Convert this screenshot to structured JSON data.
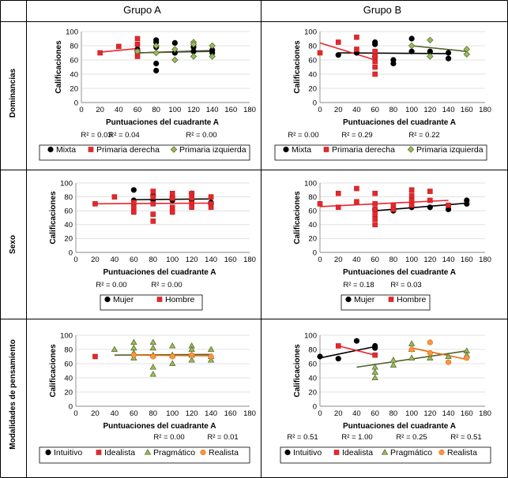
{
  "columns": [
    "Grupo A",
    "Grupo B"
  ],
  "rows": [
    "Dominancias",
    "Sexo",
    "Modalidades de pensamiento"
  ],
  "colors": {
    "black": "#000000",
    "red": "#e8262b",
    "green": "#9bbb59",
    "green_dark": "#4f6228",
    "orange": "#e46c0a",
    "orange_fill": "#f79646"
  },
  "chart_data": [
    {
      "type": "scatter",
      "group": "Grupo A",
      "row": "Dominancias",
      "xlabel": "Puntuaciones del cuadrante A",
      "ylabel": "Calificaciones",
      "xlim": [
        0,
        180
      ],
      "ylim": [
        0,
        100
      ],
      "xticks": [
        0,
        20,
        40,
        60,
        80,
        100,
        120,
        140,
        160,
        180
      ],
      "yticks": [
        0,
        20,
        40,
        60,
        80,
        100
      ],
      "r2": [
        "R² = 0.03",
        "R² = 0.04",
        "R² = 0.00"
      ],
      "series": [
        {
          "name": "Mixta",
          "marker": "circle",
          "color": "#000000",
          "points": [
            [
              60,
              75
            ],
            [
              80,
              88
            ],
            [
              80,
              85
            ],
            [
              80,
              78
            ],
            [
              80,
              55
            ],
            [
              80,
              45
            ],
            [
              100,
              84
            ],
            [
              100,
              70
            ],
            [
              120,
              78
            ],
            [
              120,
              72
            ],
            [
              140,
              70
            ],
            [
              140,
              74
            ]
          ],
          "trend": [
            [
              60,
              70
            ],
            [
              140,
              73
            ]
          ]
        },
        {
          "name": "Primaria derecha",
          "marker": "square",
          "color": "#e8262b",
          "points": [
            [
              20,
              70
            ],
            [
              40,
              79
            ],
            [
              60,
              90
            ],
            [
              60,
              82
            ],
            [
              60,
              72
            ],
            [
              60,
              65
            ]
          ],
          "trend": [
            [
              20,
              71
            ],
            [
              60,
              76
            ]
          ]
        },
        {
          "name": "Primaria izquierda",
          "marker": "diamond",
          "color": "#9bbb59",
          "points": [
            [
              60,
              72
            ],
            [
              80,
              80
            ],
            [
              80,
              70
            ],
            [
              100,
              75
            ],
            [
              100,
              60
            ],
            [
              120,
              85
            ],
            [
              120,
              82
            ],
            [
              120,
              65
            ],
            [
              140,
              80
            ],
            [
              140,
              65
            ]
          ],
          "trend": [
            [
              60,
              70
            ],
            [
              140,
              72
            ]
          ]
        }
      ]
    },
    {
      "type": "scatter",
      "group": "Grupo B",
      "row": "Dominancias",
      "xlabel": "Puntuaciones del cuadrante A",
      "ylabel": "Calificaciones",
      "xlim": [
        0,
        180
      ],
      "ylim": [
        0,
        100
      ],
      "xticks": [
        0,
        20,
        40,
        60,
        80,
        100,
        120,
        140,
        160,
        180
      ],
      "yticks": [
        0,
        20,
        40,
        60,
        80,
        100
      ],
      "r2": [
        "R² = 0.00",
        "R² = 0.29",
        "R² = 0.22"
      ],
      "series": [
        {
          "name": "Mixta",
          "marker": "circle",
          "color": "#000000",
          "points": [
            [
              20,
              67
            ],
            [
              40,
              70
            ],
            [
              60,
              85
            ],
            [
              60,
              82
            ],
            [
              60,
              65
            ],
            [
              80,
              60
            ],
            [
              80,
              55
            ],
            [
              100,
              90
            ],
            [
              100,
              72
            ],
            [
              120,
              72
            ],
            [
              140,
              70
            ],
            [
              140,
              62
            ]
          ],
          "trend": [
            [
              20,
              70
            ],
            [
              140,
              69
            ]
          ]
        },
        {
          "name": "Primaria derecha",
          "marker": "square",
          "color": "#e8262b",
          "points": [
            [
              0,
              70
            ],
            [
              20,
              85
            ],
            [
              40,
              92
            ],
            [
              40,
              75
            ],
            [
              60,
              72
            ],
            [
              60,
              65
            ],
            [
              60,
              58
            ],
            [
              60,
              50
            ],
            [
              60,
              40
            ]
          ],
          "trend": [
            [
              0,
              84
            ],
            [
              60,
              60
            ]
          ]
        },
        {
          "name": "Primaria izquierda",
          "marker": "diamond",
          "color": "#9bbb59",
          "points": [
            [
              100,
              80
            ],
            [
              120,
              88
            ],
            [
              120,
              65
            ],
            [
              160,
              75
            ],
            [
              160,
              68
            ]
          ],
          "trend": [
            [
              100,
              80
            ],
            [
              160,
              72
            ]
          ]
        }
      ]
    },
    {
      "type": "scatter",
      "group": "Grupo A",
      "row": "Sexo",
      "xlabel": "Puntuaciones del cuadrante A",
      "ylabel": "Calificaciones",
      "xlim": [
        0,
        180
      ],
      "ylim": [
        0,
        100
      ],
      "xticks": [
        0,
        20,
        40,
        60,
        80,
        100,
        120,
        140,
        160,
        180
      ],
      "yticks": [
        0,
        20,
        40,
        60,
        80,
        100
      ],
      "r2": [
        "R² = 0.00",
        "R² = 0.00"
      ],
      "series": [
        {
          "name": "Mujer",
          "marker": "circle",
          "color": "#000000",
          "points": [
            [
              60,
              90
            ],
            [
              60,
              75
            ],
            [
              80,
              82
            ],
            [
              80,
              76
            ],
            [
              100,
              80
            ],
            [
              100,
              75
            ],
            [
              120,
              85
            ],
            [
              120,
              75
            ],
            [
              140,
              72
            ],
            [
              140,
              70
            ]
          ],
          "trend": [
            [
              60,
              76
            ],
            [
              140,
              77
            ]
          ]
        },
        {
          "name": "Hombre",
          "marker": "square",
          "color": "#e8262b",
          "points": [
            [
              20,
              70
            ],
            [
              40,
              80
            ],
            [
              60,
              72
            ],
            [
              60,
              65
            ],
            [
              60,
              58
            ],
            [
              80,
              88
            ],
            [
              80,
              80
            ],
            [
              80,
              70
            ],
            [
              80,
              55
            ],
            [
              80,
              45
            ],
            [
              100,
              85
            ],
            [
              100,
              78
            ],
            [
              100,
              65
            ],
            [
              100,
              58
            ],
            [
              120,
              85
            ],
            [
              120,
              78
            ],
            [
              120,
              70
            ],
            [
              120,
              65
            ],
            [
              140,
              80
            ],
            [
              140,
              70
            ],
            [
              140,
              65
            ]
          ],
          "trend": [
            [
              20,
              70
            ],
            [
              140,
              71
            ]
          ]
        }
      ]
    },
    {
      "type": "scatter",
      "group": "Grupo B",
      "row": "Sexo",
      "xlabel": "Puntuaciones del cuadrante A",
      "ylabel": "Calificaciones",
      "xlim": [
        0,
        180
      ],
      "ylim": [
        0,
        100
      ],
      "xticks": [
        0,
        20,
        40,
        60,
        80,
        100,
        120,
        140,
        160,
        180
      ],
      "yticks": [
        0,
        20,
        40,
        60,
        80,
        100
      ],
      "r2": [
        "R² = 0.18",
        "R² = 0.03"
      ],
      "series": [
        {
          "name": "Mujer",
          "marker": "circle",
          "color": "#000000",
          "points": [
            [
              60,
              62
            ],
            [
              80,
              60
            ],
            [
              100,
              65
            ],
            [
              120,
              65
            ],
            [
              140,
              62
            ],
            [
              160,
              75
            ],
            [
              160,
              70
            ]
          ],
          "trend": [
            [
              60,
              60
            ],
            [
              160,
              71
            ]
          ]
        },
        {
          "name": "Hombre",
          "marker": "square",
          "color": "#e8262b",
          "points": [
            [
              0,
              70
            ],
            [
              20,
              85
            ],
            [
              20,
              65
            ],
            [
              40,
              92
            ],
            [
              40,
              73
            ],
            [
              60,
              85
            ],
            [
              60,
              70
            ],
            [
              60,
              62
            ],
            [
              60,
              55
            ],
            [
              60,
              48
            ],
            [
              60,
              40
            ],
            [
              80,
              68
            ],
            [
              80,
              62
            ],
            [
              100,
              90
            ],
            [
              100,
              82
            ],
            [
              100,
              75
            ],
            [
              100,
              68
            ],
            [
              120,
              88
            ],
            [
              120,
              75
            ],
            [
              140,
              68
            ]
          ],
          "trend": [
            [
              0,
              66
            ],
            [
              140,
              75
            ]
          ]
        }
      ]
    },
    {
      "type": "scatter",
      "group": "Grupo A",
      "row": "Modalidades de pensamiento",
      "xlabel": "Puntuaciones del cuadrante A",
      "ylabel": "Calificaciones",
      "xlim": [
        0,
        180
      ],
      "ylim": [
        0,
        100
      ],
      "xticks": [
        0,
        20,
        40,
        60,
        80,
        100,
        120,
        140,
        160,
        180
      ],
      "yticks": [
        0,
        20,
        40,
        60,
        80,
        100
      ],
      "r2": [
        "R² = 0.00",
        "R² = 0.01"
      ],
      "series": [
        {
          "name": "Intuitivo",
          "marker": "circle",
          "color": "#000000",
          "points": [],
          "trend": null
        },
        {
          "name": "Idealista",
          "marker": "square",
          "color": "#e8262b",
          "points": [
            [
              20,
              70
            ]
          ],
          "trend": null
        },
        {
          "name": "Pragmático",
          "marker": "triangle",
          "color": "#9bbb59",
          "points": [
            [
              40,
              80
            ],
            [
              60,
              90
            ],
            [
              60,
              82
            ],
            [
              60,
              75
            ],
            [
              60,
              68
            ],
            [
              80,
              90
            ],
            [
              80,
              82
            ],
            [
              80,
              72
            ],
            [
              80,
              55
            ],
            [
              80,
              45
            ],
            [
              100,
              85
            ],
            [
              100,
              72
            ],
            [
              100,
              60
            ],
            [
              120,
              85
            ],
            [
              120,
              80
            ],
            [
              120,
              72
            ],
            [
              120,
              65
            ],
            [
              140,
              80
            ],
            [
              140,
              70
            ],
            [
              140,
              65
            ]
          ],
          "trend": [
            [
              40,
              72
            ],
            [
              140,
              73
            ]
          ]
        },
        {
          "name": "Realista",
          "marker": "circle",
          "color": "#f79646",
          "points": [
            [
              60,
              72
            ],
            [
              80,
              70
            ],
            [
              100,
              70
            ],
            [
              120,
              72
            ],
            [
              140,
              70
            ]
          ],
          "trend": [
            [
              60,
              72
            ],
            [
              140,
              71
            ]
          ]
        }
      ]
    },
    {
      "type": "scatter",
      "group": "Grupo B",
      "row": "Modalidades de pensamiento",
      "xlabel": "Puntuaciones del cuadrante A",
      "ylabel": "Calificaciones",
      "xlim": [
        0,
        180
      ],
      "ylim": [
        0,
        100
      ],
      "xticks": [
        0,
        20,
        40,
        60,
        80,
        100,
        120,
        140,
        160,
        180
      ],
      "yticks": [
        0,
        20,
        40,
        60,
        80,
        100
      ],
      "r2": [
        "R² = 0.51",
        "R² = 1.00",
        "R² = 0.25",
        "R² = 0.51"
      ],
      "series": [
        {
          "name": "Intuitivo",
          "marker": "circle",
          "color": "#000000",
          "points": [
            [
              0,
              70
            ],
            [
              20,
              67
            ],
            [
              40,
              92
            ],
            [
              60,
              85
            ],
            [
              60,
              82
            ]
          ],
          "trend": [
            [
              0,
              68
            ],
            [
              60,
              84
            ]
          ]
        },
        {
          "name": "Idealista",
          "marker": "square",
          "color": "#e8262b",
          "points": [
            [
              20,
              85
            ],
            [
              60,
              72
            ]
          ],
          "trend": [
            [
              20,
              85
            ],
            [
              60,
              72
            ]
          ]
        },
        {
          "name": "Pragmático",
          "marker": "triangle",
          "color": "#9bbb59",
          "points": [
            [
              60,
              55
            ],
            [
              60,
              48
            ],
            [
              60,
              40
            ],
            [
              80,
              65
            ],
            [
              80,
              58
            ],
            [
              100,
              88
            ],
            [
              100,
              80
            ],
            [
              100,
              68
            ],
            [
              120,
              68
            ],
            [
              140,
              70
            ],
            [
              160,
              78
            ],
            [
              160,
              72
            ]
          ],
          "trend": [
            [
              40,
              55
            ],
            [
              160,
              78
            ]
          ]
        },
        {
          "name": "Realista",
          "marker": "circle",
          "color": "#f79646",
          "points": [
            [
              100,
              80
            ],
            [
              120,
              90
            ],
            [
              120,
              75
            ],
            [
              140,
              62
            ],
            [
              160,
              68
            ]
          ],
          "trend": [
            [
              100,
              82
            ],
            [
              160,
              66
            ]
          ]
        }
      ]
    }
  ]
}
